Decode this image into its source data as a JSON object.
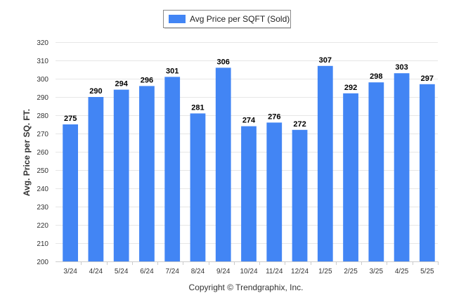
{
  "chart_data": {
    "type": "bar",
    "title": "",
    "xlabel": "",
    "ylabel": "Avg. Price per SQ. FT.",
    "categories": [
      "3/24",
      "4/24",
      "5/24",
      "6/24",
      "7/24",
      "8/24",
      "9/24",
      "10/24",
      "11/24",
      "12/24",
      "1/25",
      "2/25",
      "3/25",
      "4/25",
      "5/25"
    ],
    "series": [
      {
        "name": "Avg Price per SQFT (Sold)",
        "values": [
          275,
          290,
          294,
          296,
          301,
          281,
          306,
          274,
          276,
          272,
          307,
          292,
          298,
          303,
          297
        ]
      }
    ],
    "ylim": [
      200,
      320
    ],
    "yticks": [
      200,
      210,
      220,
      230,
      240,
      250,
      260,
      270,
      280,
      290,
      300,
      310,
      320
    ],
    "grid": true,
    "legend_position": "top-center",
    "data_labels": true
  },
  "colors": {
    "bar": "#4285f4",
    "grid": "#e6e6e6",
    "axis": "#cccccc"
  },
  "footer": {
    "copyright": "Copyright © Trendgraphix, Inc."
  }
}
